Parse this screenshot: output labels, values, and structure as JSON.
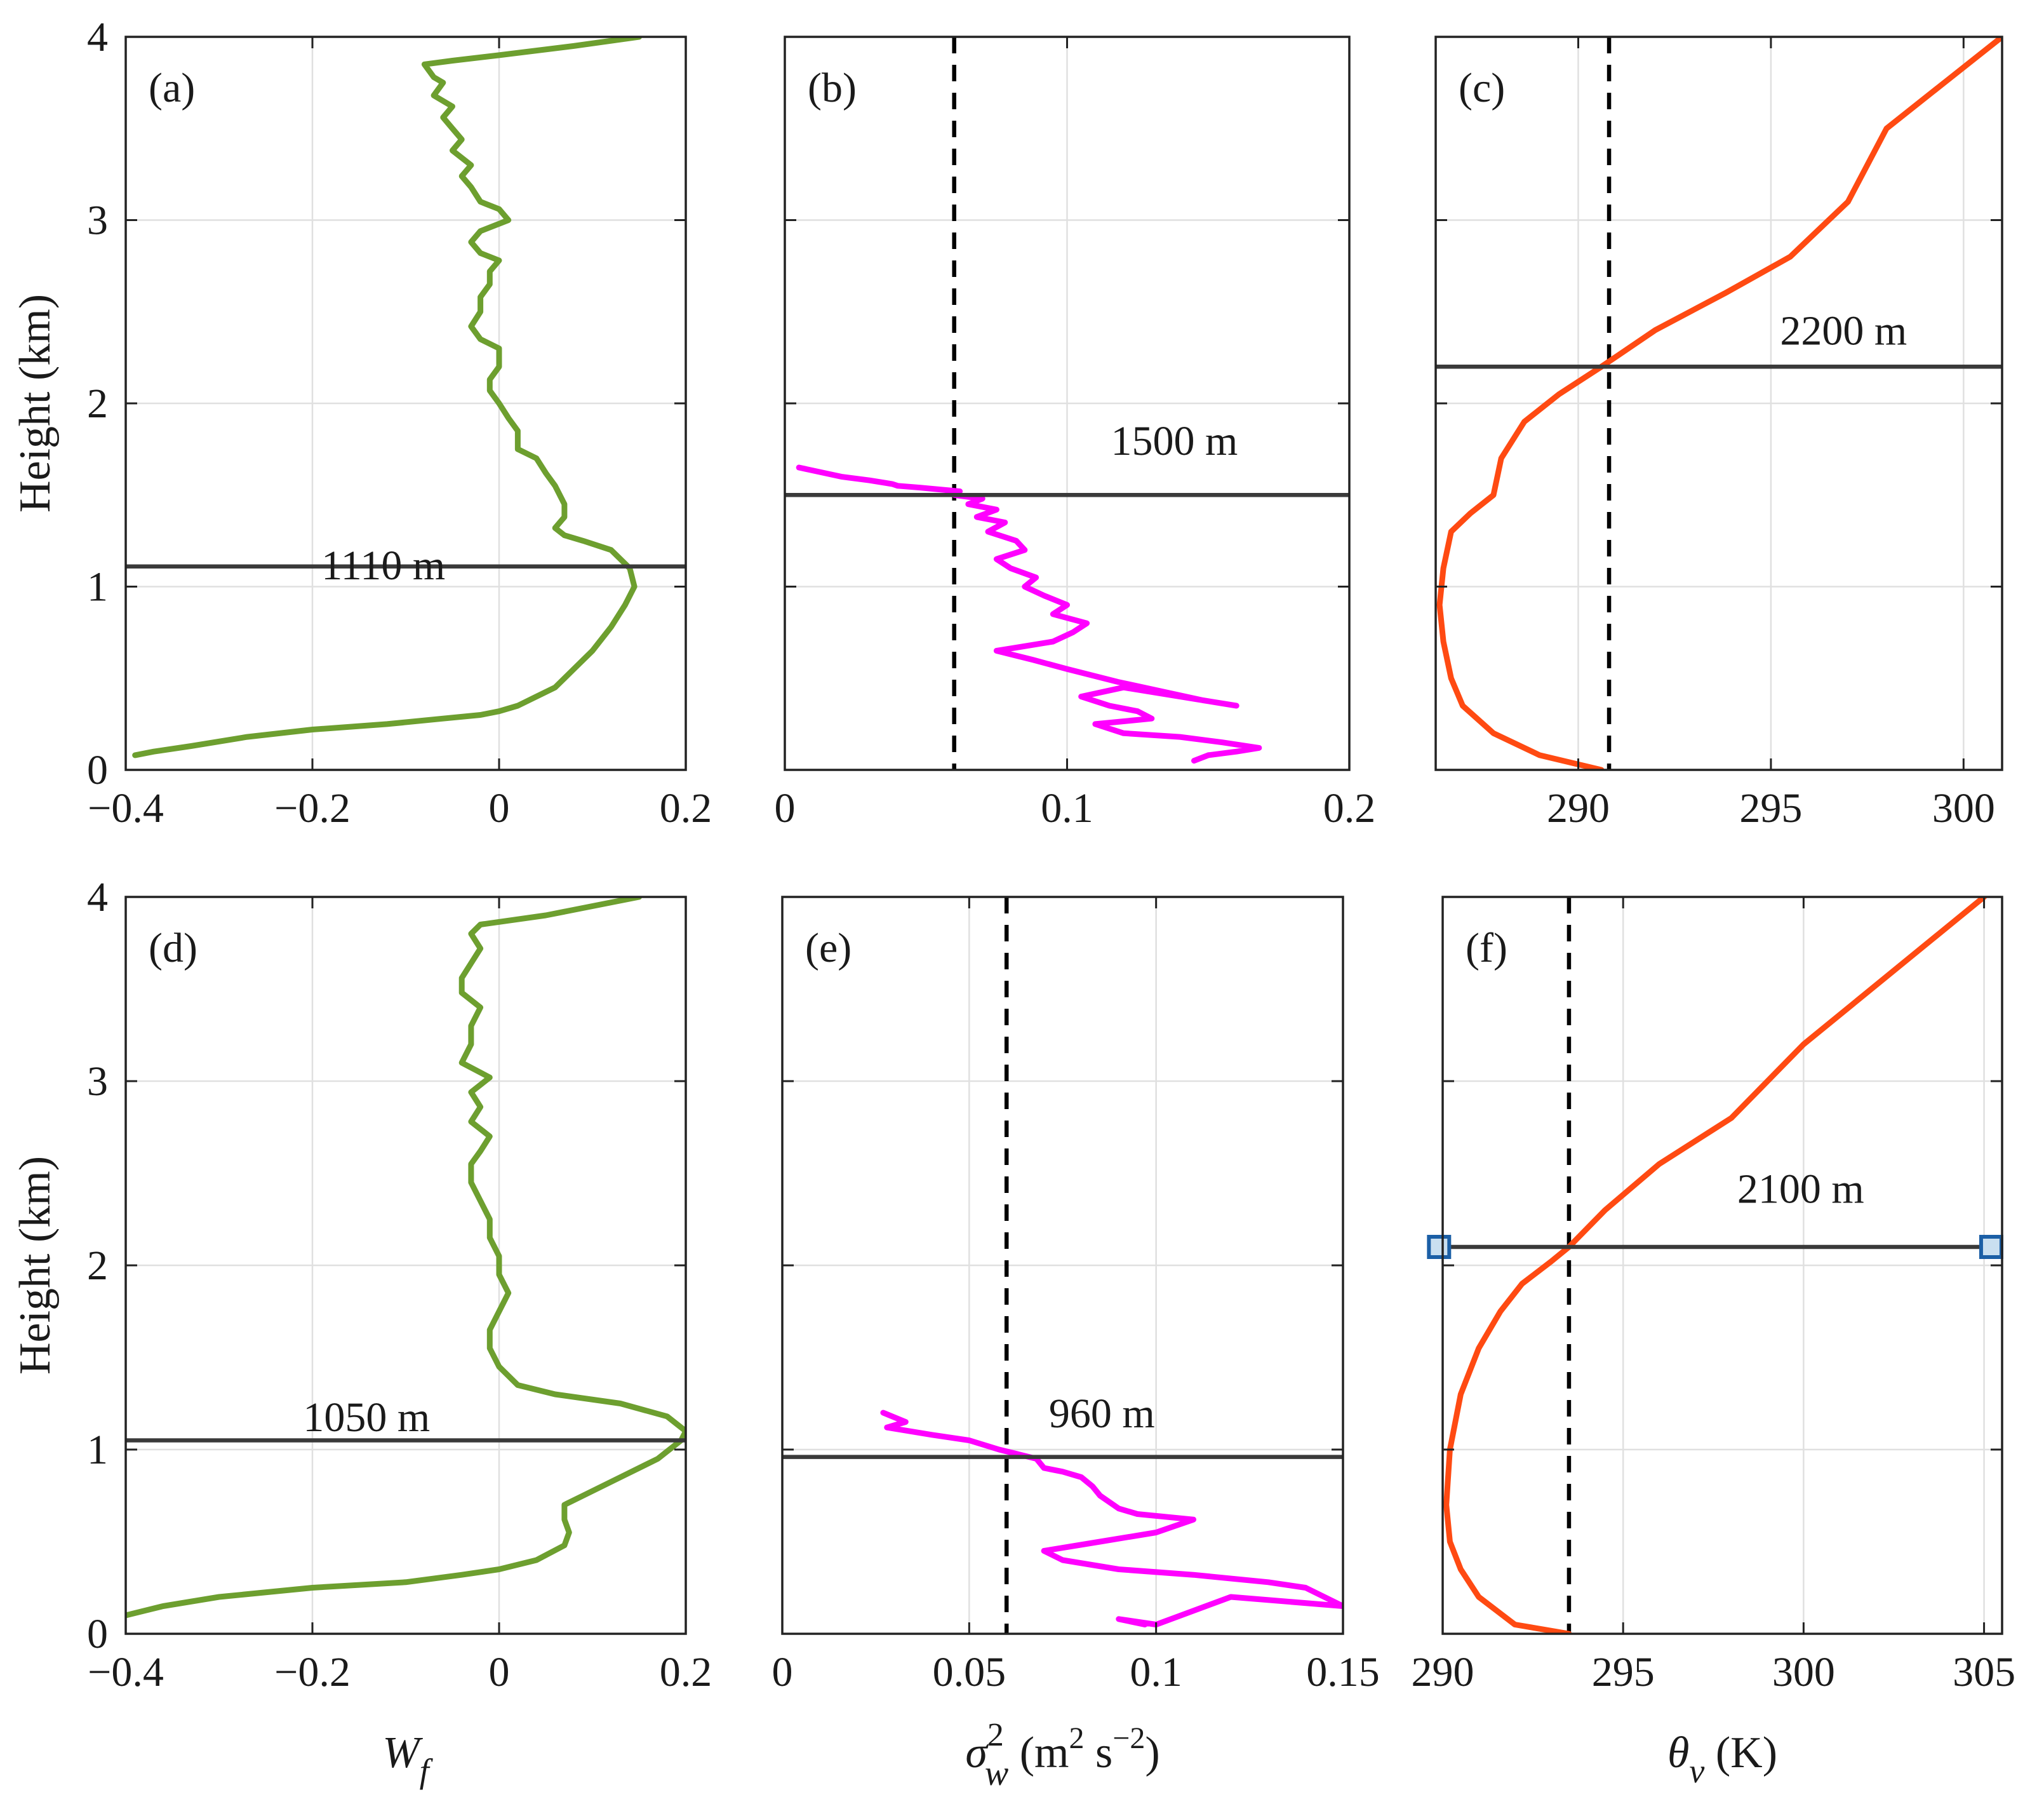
{
  "chart_data": [
    {
      "id": "a",
      "type": "line",
      "panel_label": "(a)",
      "xlim": [
        -0.4,
        0.2
      ],
      "ylim": [
        0,
        4
      ],
      "xticks": [
        -0.4,
        -0.2,
        0,
        0.2
      ],
      "xtick_labels": [
        "−0.4",
        "−0.2",
        "0",
        "0.2"
      ],
      "yticks": [
        0,
        1,
        2,
        3,
        4
      ],
      "ytick_labels": [
        "0",
        "1",
        "2",
        "3",
        "4"
      ],
      "ylabel": "Height (km)",
      "xlabel": null,
      "color": "#6d9f2f",
      "series": [
        {
          "name": "Wf",
          "x": [
            -0.39,
            -0.37,
            -0.33,
            -0.27,
            -0.2,
            -0.12,
            -0.06,
            -0.02,
            0.0,
            0.02,
            0.04,
            0.06,
            0.08,
            0.1,
            0.12,
            0.135,
            0.145,
            0.14,
            0.12,
            0.09,
            0.07,
            0.06,
            0.07,
            0.07,
            0.06,
            0.05,
            0.04,
            0.02,
            0.02,
            0.01,
            0.0,
            -0.01,
            -0.01,
            0.0,
            0.0,
            -0.02,
            -0.03,
            -0.02,
            -0.02,
            -0.01,
            -0.01,
            0.0,
            -0.02,
            -0.03,
            -0.02,
            0.01,
            0.0,
            -0.02,
            -0.03,
            -0.04,
            -0.03,
            -0.05,
            -0.04,
            -0.05,
            -0.06,
            -0.05,
            -0.07,
            -0.06,
            -0.07,
            -0.08,
            -0.05,
            0.0,
            0.08,
            0.15
          ],
          "y": [
            0.08,
            0.1,
            0.13,
            0.18,
            0.22,
            0.25,
            0.28,
            0.3,
            0.32,
            0.35,
            0.4,
            0.45,
            0.55,
            0.65,
            0.78,
            0.9,
            1.0,
            1.1,
            1.2,
            1.25,
            1.28,
            1.32,
            1.38,
            1.45,
            1.55,
            1.62,
            1.7,
            1.75,
            1.85,
            1.92,
            2.0,
            2.07,
            2.13,
            2.2,
            2.3,
            2.35,
            2.42,
            2.5,
            2.58,
            2.65,
            2.72,
            2.78,
            2.82,
            2.88,
            2.94,
            3.0,
            3.06,
            3.1,
            3.18,
            3.24,
            3.3,
            3.38,
            3.44,
            3.5,
            3.56,
            3.62,
            3.68,
            3.75,
            3.78,
            3.85,
            3.87,
            3.9,
            3.95,
            4.0
          ]
        }
      ],
      "hlines": [
        {
          "y": 1.11,
          "label": "1110 m"
        }
      ],
      "vlines": []
    },
    {
      "id": "b",
      "type": "line",
      "panel_label": "(b)",
      "xlim": [
        0,
        0.2
      ],
      "ylim": [
        0,
        4
      ],
      "xticks": [
        0,
        0.1,
        0.2
      ],
      "xtick_labels": [
        "0",
        "0.1",
        "0.2"
      ],
      "yticks": [
        0,
        1,
        2,
        3,
        4
      ],
      "ytick_labels": [],
      "ylabel": null,
      "xlabel": null,
      "color": "#ff00ff",
      "series": [
        {
          "name": "sigma_w^2",
          "x": [
            0.145,
            0.15,
            0.16,
            0.168,
            0.155,
            0.14,
            0.12,
            0.11,
            0.13,
            0.125,
            0.115,
            0.105,
            0.12,
            0.16,
            0.148,
            0.118,
            0.1,
            0.088,
            0.075,
            0.095,
            0.102,
            0.107,
            0.095,
            0.1,
            0.092,
            0.085,
            0.089,
            0.08,
            0.075,
            0.085,
            0.082,
            0.072,
            0.078,
            0.068,
            0.075,
            0.065,
            0.07,
            0.06,
            0.062,
            0.055,
            0.048,
            0.04,
            0.038,
            0.03,
            0.02,
            0.005
          ],
          "y": [
            0.05,
            0.08,
            0.1,
            0.12,
            0.15,
            0.18,
            0.2,
            0.25,
            0.28,
            0.32,
            0.35,
            0.4,
            0.45,
            0.35,
            0.38,
            0.48,
            0.55,
            0.6,
            0.65,
            0.7,
            0.75,
            0.8,
            0.85,
            0.9,
            0.95,
            1.0,
            1.05,
            1.1,
            1.15,
            1.2,
            1.25,
            1.3,
            1.35,
            1.38,
            1.42,
            1.45,
            1.48,
            1.5,
            1.52,
            1.53,
            1.54,
            1.55,
            1.56,
            1.58,
            1.6,
            1.65
          ]
        }
      ],
      "hlines": [
        {
          "y": 1.5,
          "label": "1500 m"
        }
      ],
      "vlines": [
        {
          "x": 0.06
        }
      ]
    },
    {
      "id": "c",
      "type": "line",
      "panel_label": "(c)",
      "xlim": [
        286.3,
        301
      ],
      "ylim": [
        0,
        4
      ],
      "xticks": [
        290,
        295,
        300
      ],
      "xtick_labels": [
        "290",
        "295",
        "300"
      ],
      "yticks": [
        0,
        1,
        2,
        3,
        4
      ],
      "ytick_labels": [],
      "ylabel": null,
      "xlabel": null,
      "color": "#ff4a12",
      "series": [
        {
          "name": "theta_v",
          "x": [
            290.6,
            289.0,
            287.8,
            287.0,
            286.7,
            286.5,
            286.4,
            286.5,
            286.7,
            287.2,
            287.8,
            287.9,
            288.0,
            288.6,
            289.5,
            290.6,
            292.0,
            293.8,
            295.5,
            297.0,
            298.0,
            299.5,
            301.0
          ],
          "y": [
            0.0,
            0.08,
            0.2,
            0.35,
            0.5,
            0.7,
            0.9,
            1.1,
            1.3,
            1.4,
            1.5,
            1.6,
            1.7,
            1.9,
            2.05,
            2.2,
            2.4,
            2.6,
            2.8,
            3.1,
            3.5,
            3.75,
            4.0
          ]
        }
      ],
      "hlines": [
        {
          "y": 2.2,
          "label": "2200 m"
        }
      ],
      "vlines": [
        {
          "x": 290.8
        }
      ]
    },
    {
      "id": "d",
      "type": "line",
      "panel_label": "(d)",
      "xlim": [
        -0.4,
        0.2
      ],
      "ylim": [
        0,
        4
      ],
      "xticks": [
        -0.4,
        -0.2,
        0,
        0.2
      ],
      "xtick_labels": [
        "−0.4",
        "−0.2",
        "0",
        "0.2"
      ],
      "yticks": [
        0,
        1,
        2,
        3,
        4
      ],
      "ytick_labels": [
        "0",
        "1",
        "2",
        "3",
        "4"
      ],
      "ylabel": "Height (km)",
      "xlabel": "W",
      "xlabel_sub": "f",
      "color": "#6d9f2f",
      "series": [
        {
          "name": "Wf",
          "x": [
            -0.4,
            -0.36,
            -0.3,
            -0.2,
            -0.1,
            -0.04,
            0.0,
            0.04,
            0.07,
            0.075,
            0.07,
            0.07,
            0.09,
            0.13,
            0.17,
            0.195,
            0.2,
            0.18,
            0.13,
            0.06,
            0.02,
            0.0,
            -0.01,
            -0.01,
            0.0,
            0.01,
            0.0,
            0.0,
            -0.01,
            -0.01,
            -0.02,
            -0.03,
            -0.03,
            -0.02,
            -0.01,
            -0.03,
            -0.02,
            -0.03,
            -0.01,
            -0.04,
            -0.03,
            -0.03,
            -0.02,
            -0.04,
            -0.04,
            -0.03,
            -0.02,
            -0.03,
            -0.02,
            0.05,
            0.15
          ],
          "y": [
            0.1,
            0.15,
            0.2,
            0.25,
            0.28,
            0.32,
            0.35,
            0.4,
            0.48,
            0.55,
            0.62,
            0.7,
            0.75,
            0.85,
            0.95,
            1.05,
            1.1,
            1.18,
            1.25,
            1.3,
            1.35,
            1.45,
            1.55,
            1.65,
            1.75,
            1.85,
            1.95,
            2.05,
            2.15,
            2.25,
            2.35,
            2.45,
            2.55,
            2.62,
            2.7,
            2.78,
            2.86,
            2.94,
            3.02,
            3.1,
            3.2,
            3.3,
            3.4,
            3.48,
            3.56,
            3.64,
            3.72,
            3.8,
            3.85,
            3.9,
            4.0
          ]
        }
      ],
      "hlines": [
        {
          "y": 1.05,
          "label": "1050 m"
        }
      ],
      "vlines": []
    },
    {
      "id": "e",
      "type": "line",
      "panel_label": "(e)",
      "xlim": [
        0,
        0.15
      ],
      "ylim": [
        0,
        4
      ],
      "xticks": [
        0,
        0.05,
        0.1,
        0.15
      ],
      "xtick_labels": [
        "0",
        "0.05",
        "0.1",
        "0.15"
      ],
      "yticks": [
        0,
        1,
        2,
        3,
        4
      ],
      "ytick_labels": [],
      "ylabel": null,
      "xlabel": "σ",
      "xlabel_sup": "2",
      "xlabel_sub": "w",
      "xlabel_rest": " (m",
      "xlabel_unit_sup1": "2",
      "xlabel_unit_mid": " s",
      "xlabel_unit_sup2": "−2",
      "xlabel_unit_end": ")",
      "color": "#ff00ff",
      "series": [
        {
          "name": "sigma_w^2",
          "x": [
            0.097,
            0.09,
            0.1,
            0.12,
            0.15,
            0.14,
            0.13,
            0.11,
            0.09,
            0.075,
            0.07,
            0.085,
            0.1,
            0.11,
            0.095,
            0.09,
            0.085,
            0.083,
            0.08,
            0.075,
            0.07,
            0.068,
            0.062,
            0.058,
            0.05,
            0.04,
            0.028,
            0.033,
            0.027
          ],
          "y": [
            0.05,
            0.08,
            0.05,
            0.2,
            0.15,
            0.25,
            0.28,
            0.32,
            0.35,
            0.4,
            0.45,
            0.5,
            0.55,
            0.62,
            0.65,
            0.68,
            0.75,
            0.8,
            0.85,
            0.88,
            0.9,
            0.95,
            0.98,
            1.0,
            1.05,
            1.08,
            1.12,
            1.15,
            1.2
          ]
        }
      ],
      "hlines": [
        {
          "y": 0.96,
          "label": "960 m"
        }
      ],
      "vlines": [
        {
          "x": 0.06
        }
      ]
    },
    {
      "id": "f",
      "type": "line",
      "panel_label": "(f)",
      "xlim": [
        290,
        305.5
      ],
      "ylim": [
        0,
        4
      ],
      "xticks": [
        290,
        295,
        300,
        305
      ],
      "xtick_labels": [
        "290",
        "295",
        "300",
        "305"
      ],
      "yticks": [
        0,
        1,
        2,
        3,
        4
      ],
      "ytick_labels": [],
      "ylabel": null,
      "xlabel": "θ",
      "xlabel_sub": "v",
      "xlabel_rest": " (K)",
      "color": "#ff4a12",
      "series": [
        {
          "name": "theta_v",
          "x": [
            293.5,
            292.0,
            291.0,
            290.5,
            290.2,
            290.1,
            290.2,
            290.5,
            291.0,
            291.6,
            292.2,
            293.0,
            293.5,
            294.5,
            296.0,
            298.0,
            300.0,
            302.5,
            305.0
          ],
          "y": [
            0.0,
            0.05,
            0.2,
            0.35,
            0.5,
            0.7,
            1.0,
            1.3,
            1.55,
            1.75,
            1.9,
            2.02,
            2.1,
            2.3,
            2.55,
            2.8,
            3.2,
            3.6,
            4.0
          ]
        }
      ],
      "hlines": [
        {
          "y": 2.1,
          "label": "2100 m"
        }
      ],
      "vlines": [
        {
          "x": 293.5
        }
      ],
      "markers": [
        {
          "x": 289.9,
          "y": 2.1
        },
        {
          "x": 305.2,
          "y": 2.1
        }
      ]
    }
  ]
}
